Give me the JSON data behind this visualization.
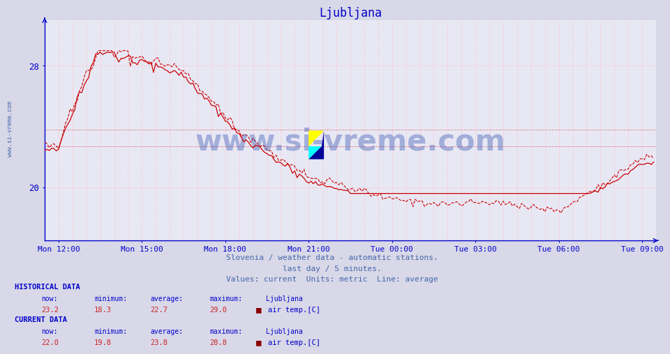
{
  "title": "Ljubljana",
  "title_color": "#0000cc",
  "bg_color": "#d8d8e8",
  "plot_bg_color": "#e8e8f4",
  "line_color": "#cc0000",
  "axis_color": "#0000cc",
  "tick_color": "#0000cc",
  "grid_v_color": "#ffbbbb",
  "grid_h_color": "#ffbbbb",
  "watermark": "www.si-vreme.com",
  "watermark_color": "#2244aa",
  "footer_line1": "Slovenia / weather data - automatic stations.",
  "footer_line2": "last day / 5 minutes.",
  "footer_line3": "Values: current  Units: metric  Line: average",
  "footer_color": "#4466aa",
  "xtick_labels": [
    "Mon 12:00",
    "Mon 15:00",
    "Mon 18:00",
    "Mon 21:00",
    "Tue 00:00",
    "Tue 03:00",
    "Tue 06:00",
    "Tue 09:00"
  ],
  "ytick_labels": [
    "20",
    "28"
  ],
  "ytick_values": [
    20,
    28
  ],
  "ymin": 16.5,
  "ymax": 31.0,
  "hist_now": 23.2,
  "hist_min": 18.3,
  "hist_avg": 22.7,
  "hist_max": 29.0,
  "curr_now": 22.0,
  "curr_min": 19.8,
  "curr_avg": 23.8,
  "curr_max": 28.8,
  "station": "Ljubljana",
  "param": "air temp.[C]",
  "sidebar_text": "www.si-vreme.com",
  "sidebar_color": "#4466aa"
}
